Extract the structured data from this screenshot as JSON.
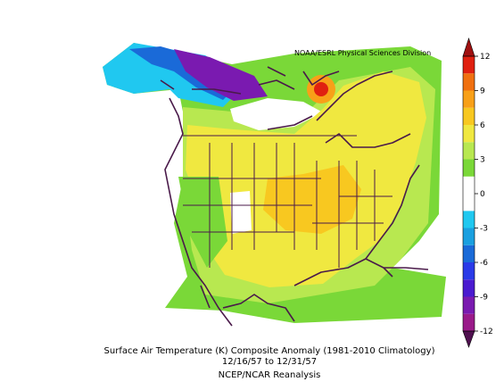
{
  "header": {
    "credit": "NOAA/ESRL Physical Sciences Division"
  },
  "colorbar": {
    "lim": [
      -12,
      12
    ],
    "ticks": [
      -12,
      -9,
      -6,
      -3,
      0,
      3,
      6,
      9,
      12
    ],
    "colors": [
      "#9a1a8a",
      "#7a1ab0",
      "#4a1ad0",
      "#2a3ae8",
      "#1a6ad8",
      "#1aa0e0",
      "#20c8f0",
      "#ffffff",
      "#ffffff",
      "#7ad838",
      "#b8e850",
      "#f0e840",
      "#f8c820",
      "#f8a018",
      "#f07010",
      "#e02010"
    ],
    "under_color": "#501050",
    "over_color": "#a01010"
  },
  "caption": {
    "line1": "Surface Air Temperature (K) Composite Anomaly (1981-2010 Climatology)",
    "line2": "12/16/57  to 12/31/57",
    "line3": "NCEP/NCAR Reanalysis"
  }
}
